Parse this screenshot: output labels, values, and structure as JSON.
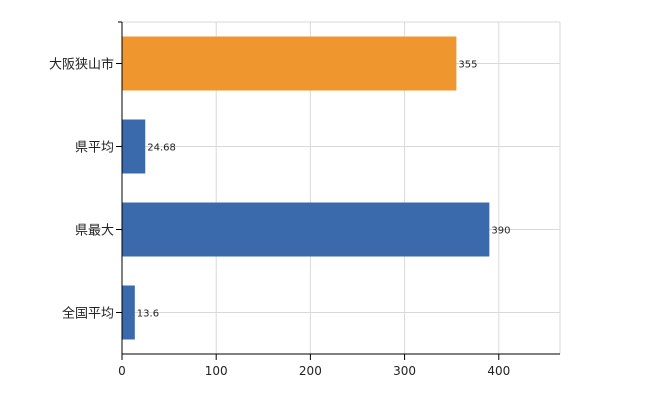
{
  "chart_data": {
    "type": "bar",
    "orientation": "horizontal",
    "categories": [
      "大阪狭山市",
      "県平均",
      "県最大",
      "全国平均"
    ],
    "values": [
      355,
      24.68,
      390,
      13.6
    ],
    "data_labels": [
      "355",
      "24.68",
      "390",
      "13.6"
    ],
    "bar_colors": [
      "#f0962e",
      "#3a6aab",
      "#3a6aab",
      "#3a6aab"
    ],
    "xlim": [
      0,
      465
    ],
    "x_ticks": [
      0,
      100,
      200,
      300,
      400
    ],
    "x_tick_labels": [
      "0",
      "100",
      "200",
      "300",
      "400"
    ],
    "grid": true,
    "grid_color": "#d9d9d9",
    "axis_color": "#000000"
  }
}
